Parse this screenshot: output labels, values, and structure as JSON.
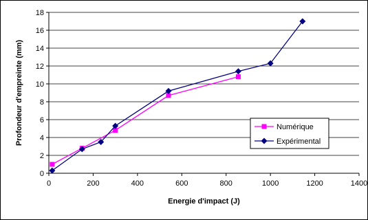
{
  "chart_data": {
    "type": "line",
    "title": "",
    "xlabel": "Energie d'impact (J)",
    "ylabel": "Profondeur d'empreinte (mm)",
    "xlim": [
      0,
      1400
    ],
    "ylim": [
      0,
      18
    ],
    "x_ticks": [
      0,
      200,
      400,
      600,
      800,
      1000,
      1200,
      1400
    ],
    "y_ticks": [
      0,
      2,
      4,
      6,
      8,
      10,
      12,
      14,
      16,
      18
    ],
    "x_tick_labels": [
      "0",
      "200",
      "400",
      "600",
      "800",
      "1000",
      "1200",
      "1400"
    ],
    "y_tick_labels": [
      "0",
      "2",
      "4",
      "6",
      "8",
      "10",
      "12",
      "14",
      "16",
      "18"
    ],
    "grid": "horizontal",
    "legend_position": "right",
    "series": [
      {
        "name": "Numérique",
        "color": "#ff00ff",
        "marker": "square",
        "points": [
          {
            "x": 15,
            "y": 1.0
          },
          {
            "x": 150,
            "y": 2.8
          },
          {
            "x": 300,
            "y": 4.8
          },
          {
            "x": 540,
            "y": 8.7
          },
          {
            "x": 855,
            "y": 10.8
          }
        ]
      },
      {
        "name": "Expérimental",
        "color": "#000080",
        "marker": "diamond",
        "points": [
          {
            "x": 15,
            "y": 0.3
          },
          {
            "x": 150,
            "y": 2.7
          },
          {
            "x": 235,
            "y": 3.5
          },
          {
            "x": 300,
            "y": 5.3
          },
          {
            "x": 540,
            "y": 9.2
          },
          {
            "x": 855,
            "y": 11.4
          },
          {
            "x": 1000,
            "y": 12.3
          },
          {
            "x": 1145,
            "y": 17.0
          }
        ]
      }
    ]
  }
}
